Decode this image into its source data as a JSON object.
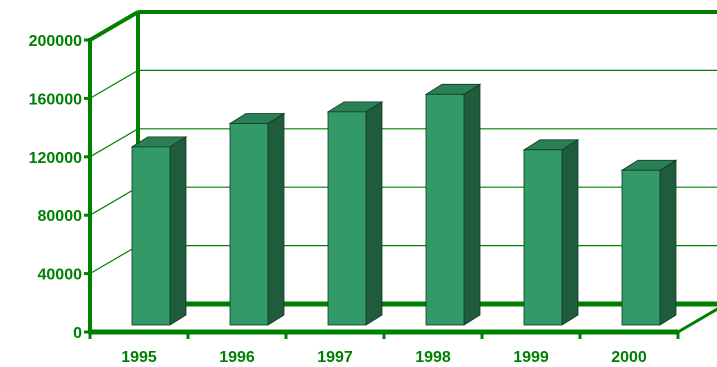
{
  "chart_data": {
    "type": "bar",
    "style": "3d",
    "categories": [
      "1995",
      "1996",
      "1997",
      "1998",
      "1999",
      "2000"
    ],
    "values": [
      122000,
      138000,
      146000,
      158000,
      120000,
      106000
    ],
    "title": "",
    "xlabel": "",
    "ylabel": "",
    "ylim": [
      0,
      200000
    ],
    "yticks": [
      0,
      40000,
      80000,
      120000,
      160000,
      200000
    ],
    "grid": true,
    "legend": "none"
  },
  "colors": {
    "axis": "#008000",
    "tick_text": "#008000",
    "gridline": "#008000",
    "bar_front": "#339966",
    "bar_side": "#1f5c3d",
    "bar_top": "#2b7f55",
    "background": "#ffffff"
  }
}
